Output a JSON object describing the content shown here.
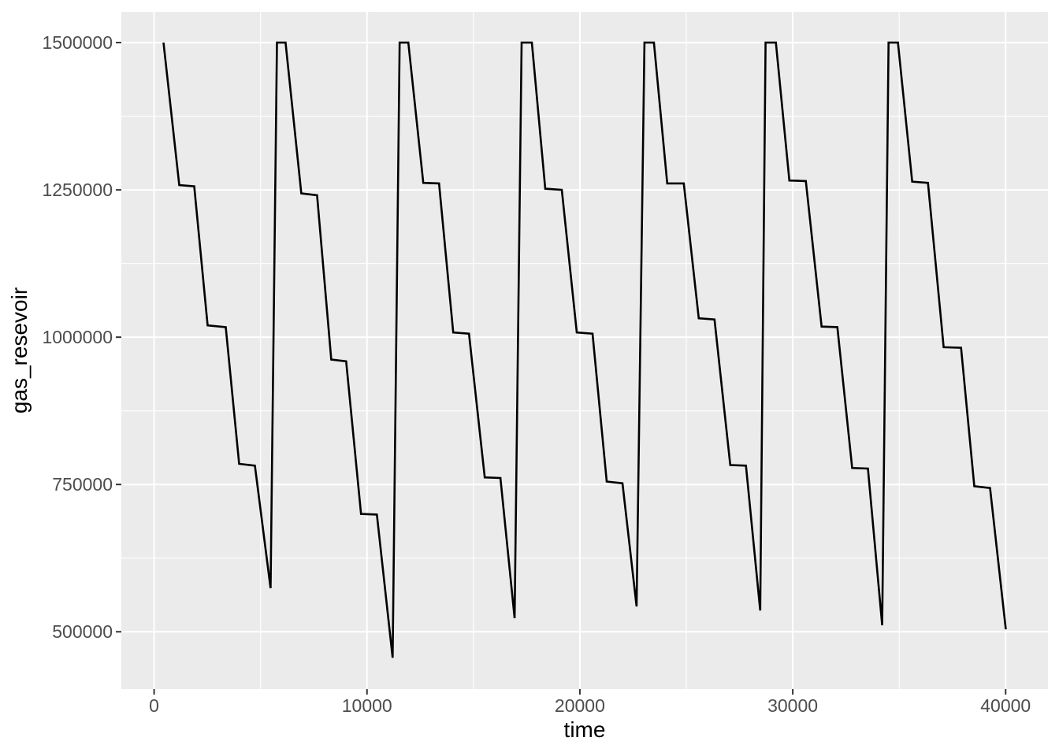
{
  "figure": {
    "background": "#FFFFFF"
  },
  "chart_data": {
    "type": "line",
    "title": "",
    "xlabel": "time",
    "ylabel": "gas_resevoir",
    "x_ticks": [
      0,
      10000,
      20000,
      30000,
      40000
    ],
    "x_minor_ticks": [
      5000,
      15000,
      25000,
      35000
    ],
    "y_ticks": [
      500000,
      750000,
      1000000,
      1250000,
      1500000
    ],
    "y_minor_ticks": [
      625000,
      875000,
      1125000,
      1375000
    ],
    "xlim": [
      -1539,
      41989
    ],
    "ylim": [
      402750,
      1552250
    ],
    "grid": true,
    "legend": "none",
    "theme": {
      "panel_background": "#EBEBEB",
      "grid_major": "#FFFFFF",
      "grid_minor": "#FFFFFF",
      "axis_text": "#4D4D4D",
      "axis_title": "#000000",
      "tick_mark": "#333333",
      "series_color": "#000000"
    },
    "series": [
      {
        "name": "gas_resevoir",
        "points": [
          [
            440,
            1500000
          ],
          [
            1180,
            1258000
          ],
          [
            1885,
            1256000
          ],
          [
            2515,
            1020000
          ],
          [
            3365,
            1017000
          ],
          [
            3995,
            785000
          ],
          [
            4735,
            782000
          ],
          [
            5470,
            574000
          ],
          [
            5770,
            1500000
          ],
          [
            6175,
            1500000
          ],
          [
            6915,
            1244000
          ],
          [
            7655,
            1241000
          ],
          [
            8320,
            962000
          ],
          [
            9020,
            959000
          ],
          [
            9720,
            700000
          ],
          [
            10465,
            699000
          ],
          [
            11205,
            456000
          ],
          [
            11535,
            1500000
          ],
          [
            11940,
            1500000
          ],
          [
            12645,
            1262000
          ],
          [
            13385,
            1261000
          ],
          [
            14050,
            1008000
          ],
          [
            14790,
            1006000
          ],
          [
            15530,
            762000
          ],
          [
            16270,
            761000
          ],
          [
            16935,
            523000
          ],
          [
            17265,
            1500000
          ],
          [
            17745,
            1500000
          ],
          [
            18375,
            1252000
          ],
          [
            19150,
            1250000
          ],
          [
            19855,
            1008000
          ],
          [
            20595,
            1006000
          ],
          [
            21260,
            755000
          ],
          [
            22000,
            752000
          ],
          [
            22665,
            543000
          ],
          [
            23035,
            1500000
          ],
          [
            23480,
            1500000
          ],
          [
            24105,
            1261000
          ],
          [
            24880,
            1261000
          ],
          [
            25585,
            1032000
          ],
          [
            26325,
            1030000
          ],
          [
            27065,
            783000
          ],
          [
            27800,
            782000
          ],
          [
            28470,
            536000
          ],
          [
            28725,
            1500000
          ],
          [
            29210,
            1500000
          ],
          [
            29840,
            1266000
          ],
          [
            30615,
            1265000
          ],
          [
            31355,
            1018000
          ],
          [
            32095,
            1017000
          ],
          [
            32790,
            778000
          ],
          [
            33530,
            777000
          ],
          [
            34200,
            511000
          ],
          [
            34500,
            1500000
          ],
          [
            34940,
            1500000
          ],
          [
            35610,
            1264000
          ],
          [
            36350,
            1262000
          ],
          [
            37090,
            983000
          ],
          [
            37905,
            982000
          ],
          [
            38530,
            747000
          ],
          [
            39270,
            744000
          ],
          [
            40010,
            504000
          ]
        ]
      }
    ]
  }
}
